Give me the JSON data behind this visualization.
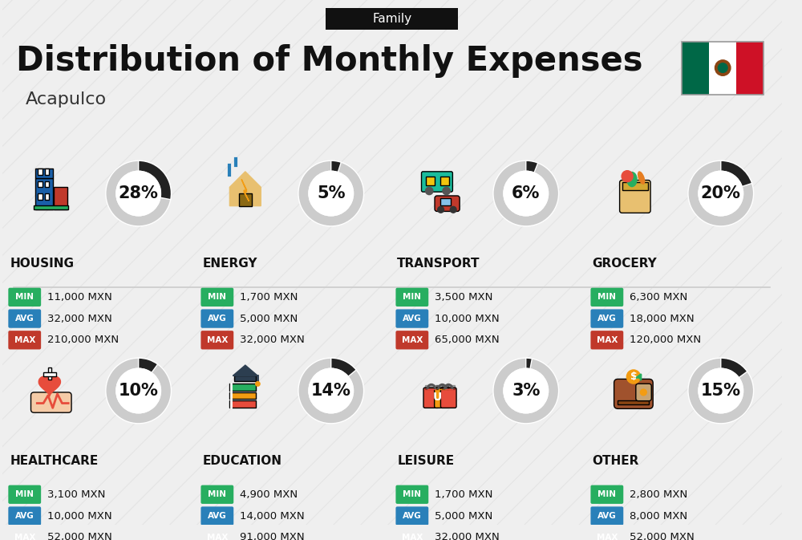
{
  "title": "Distribution of Monthly Expenses",
  "subtitle": "Family",
  "city": "Acapulco",
  "background_color": "#efefef",
  "header_bg": "#111111",
  "categories": [
    {
      "name": "HOUSING",
      "percent": 28,
      "min": "11,000 MXN",
      "avg": "32,000 MXN",
      "max": "210,000 MXN",
      "row": 0,
      "col": 0
    },
    {
      "name": "ENERGY",
      "percent": 5,
      "min": "1,700 MXN",
      "avg": "5,000 MXN",
      "max": "32,000 MXN",
      "row": 0,
      "col": 1
    },
    {
      "name": "TRANSPORT",
      "percent": 6,
      "min": "3,500 MXN",
      "avg": "10,000 MXN",
      "max": "65,000 MXN",
      "row": 0,
      "col": 2
    },
    {
      "name": "GROCERY",
      "percent": 20,
      "min": "6,300 MXN",
      "avg": "18,000 MXN",
      "max": "120,000 MXN",
      "row": 0,
      "col": 3
    },
    {
      "name": "HEALTHCARE",
      "percent": 10,
      "min": "3,100 MXN",
      "avg": "10,000 MXN",
      "max": "52,000 MXN",
      "row": 1,
      "col": 0
    },
    {
      "name": "EDUCATION",
      "percent": 14,
      "min": "4,900 MXN",
      "avg": "14,000 MXN",
      "max": "91,000 MXN",
      "row": 1,
      "col": 1
    },
    {
      "name": "LEISURE",
      "percent": 3,
      "min": "1,700 MXN",
      "avg": "5,000 MXN",
      "max": "32,000 MXN",
      "row": 1,
      "col": 2
    },
    {
      "name": "OTHER",
      "percent": 15,
      "min": "2,800 MXN",
      "avg": "8,000 MXN",
      "max": "52,000 MXN",
      "row": 1,
      "col": 3
    }
  ],
  "min_color": "#27ae60",
  "avg_color": "#2980b9",
  "max_color": "#c0392b",
  "arc_bg_color": "#cccccc",
  "arc_active_color": "#222222",
  "stripe_color": "#e0e0e0",
  "divider_color": "#cccccc",
  "title_fontsize": 30,
  "city_fontsize": 16,
  "percent_fontsize": 15,
  "category_fontsize": 11,
  "value_fontsize": 9.5,
  "badge_fontsize": 7.5
}
